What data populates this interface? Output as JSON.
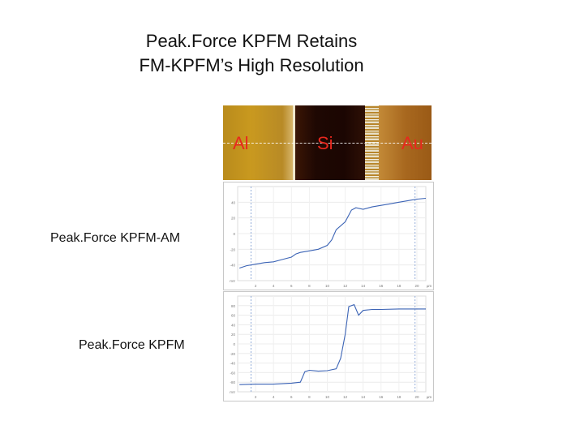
{
  "slide": {
    "title_line1": "Peak.Force KPFM Retains",
    "title_line2": "FM-KPFM’s High Resolution",
    "label_am": "Peak.Force KPFM-AM",
    "label_kpfm": "Peak.Force KPFM"
  },
  "afm_image": {
    "materials": [
      "Al",
      "Si",
      "Au"
    ],
    "colors": {
      "al": "#c49722",
      "si": "#200803",
      "au": "#ad6d24",
      "label": "#e8281e"
    }
  },
  "chart_data": [
    {
      "type": "line",
      "title": "Peak.Force KPFM-AM",
      "xlabel": "µm",
      "ylabel": "mV",
      "xlim": [
        0,
        21
      ],
      "ylim": [
        -60,
        60
      ],
      "xticks": [
        2,
        4,
        6,
        8,
        10,
        12,
        14,
        16,
        18,
        20
      ],
      "yticks": [
        -40,
        -20,
        0,
        20,
        40
      ],
      "series": [
        {
          "x": [
            0.2,
            1,
            2,
            3,
            4,
            5,
            6,
            6.5,
            7,
            8,
            9,
            10,
            10.5,
            11,
            12,
            12.7,
            13.2,
            14,
            15,
            16,
            17,
            18,
            19,
            20,
            21
          ],
          "y": [
            -44,
            -41,
            -39,
            -37,
            -36,
            -33,
            -30,
            -26,
            -24,
            -22,
            -20,
            -15,
            -8,
            5,
            15,
            30,
            33,
            31,
            34,
            36,
            38,
            40,
            42,
            44,
            45
          ]
        }
      ],
      "grid": true
    },
    {
      "type": "line",
      "title": "Peak.Force KPFM",
      "xlabel": "µm",
      "ylabel": "mV",
      "xlim": [
        0,
        21
      ],
      "ylim": [
        -100,
        100
      ],
      "xticks": [
        2,
        4,
        6,
        8,
        10,
        12,
        14,
        16,
        18,
        20
      ],
      "yticks": [
        -80,
        -60,
        -40,
        -20,
        0,
        20,
        40,
        60,
        80
      ],
      "series": [
        {
          "x": [
            0.2,
            2,
            4,
            6,
            7,
            7.5,
            8,
            9,
            10,
            11,
            11.5,
            12,
            12.4,
            13,
            13.5,
            14,
            15,
            16,
            18,
            20,
            21
          ],
          "y": [
            -85,
            -84,
            -84,
            -82,
            -80,
            -58,
            -55,
            -57,
            -56,
            -52,
            -30,
            20,
            78,
            82,
            60,
            70,
            72,
            72,
            73,
            73,
            73
          ]
        }
      ],
      "grid": true
    }
  ]
}
